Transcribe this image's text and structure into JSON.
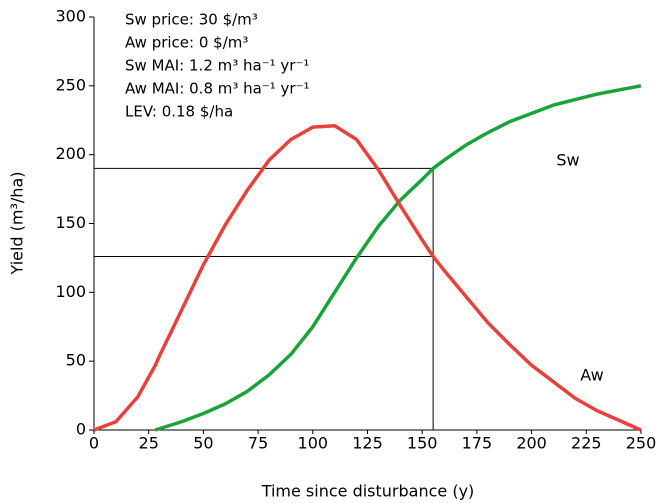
{
  "chart_data": {
    "type": "line",
    "x_label": "Time since disturbance (y)",
    "y_label": "Yield (m³/ha)",
    "annotations": [
      "Sw price: 30 $/m³",
      "Aw price: 0 $/m³",
      "Sw MAI: 1.2 m³ ha⁻¹ yr⁻¹",
      "Aw MAI: 0.8 m³ ha⁻¹ yr⁻¹",
      "LEV: 0.18 $/ha"
    ],
    "x": [
      0,
      10,
      20,
      28,
      30,
      40,
      50,
      60,
      70,
      80,
      90,
      100,
      110,
      120,
      130,
      140,
      150,
      155,
      160,
      170,
      180,
      190,
      200,
      210,
      220,
      230,
      240,
      250
    ],
    "series": [
      {
        "name": "Sw",
        "color": "#1aa33a",
        "values": [
          null,
          null,
          null,
          0,
          1,
          6,
          12,
          19,
          28,
          40,
          55,
          75,
          100,
          125,
          148,
          167,
          182,
          190,
          196,
          207,
          216,
          224,
          230,
          236,
          240,
          244,
          247,
          250
        ]
      },
      {
        "name": "Aw",
        "color": "#e8403a",
        "values": [
          0,
          6,
          24,
          47,
          54,
          87,
          120,
          149,
          174,
          196,
          211,
          220,
          221,
          211,
          189,
          163,
          138,
          126,
          116,
          97,
          78,
          62,
          47,
          35,
          23,
          14,
          7,
          0
        ]
      }
    ],
    "guides": [
      {
        "x": 155,
        "y": 190
      },
      {
        "x": 155,
        "y": 126
      }
    ],
    "xlim": [
      0,
      250
    ],
    "xticks": [
      0,
      25,
      50,
      75,
      100,
      125,
      150,
      175,
      200,
      225,
      250
    ],
    "ylim": [
      0,
      300
    ],
    "yticks": [
      0,
      50,
      100,
      150,
      200,
      250,
      300
    ]
  }
}
